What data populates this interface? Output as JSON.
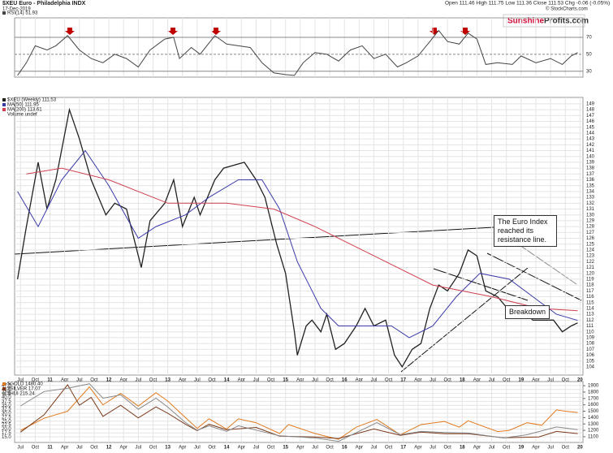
{
  "header": {
    "symbol": "$XEU Euro - Philadelphia INDX",
    "date": "17-Dec-2019",
    "quote": "Open 111.46  High 111.75  Low 111.36  Close 111.53  Chg -0.06 (-0.05%)",
    "credit": "© StockCharts.com"
  },
  "logo": {
    "brand": "Sunshine",
    "domain": "Profits.com"
  },
  "chart_data": [
    {
      "type": "line",
      "xlim": [
        2010.4,
        2020.05
      ],
      "ylim": [
        23,
        93
      ],
      "yticks": [
        30,
        50,
        70
      ],
      "grid": true,
      "series": [
        {
          "name": "RSI(14) 51.93",
          "color": "#444444",
          "x": [
            2010.45,
            2010.6,
            2010.75,
            2010.95,
            2011.1,
            2011.3,
            2011.5,
            2011.7,
            2011.9,
            2012.1,
            2012.3,
            2012.5,
            2012.7,
            2012.95,
            2013.1,
            2013.2,
            2013.4,
            2013.55,
            2013.8,
            2014.0,
            2014.2,
            2014.4,
            2014.6,
            2014.8,
            2015.0,
            2015.15,
            2015.3,
            2015.5,
            2015.7,
            2015.9,
            2016.1,
            2016.3,
            2016.5,
            2016.7,
            2016.9,
            2017.05,
            2017.25,
            2017.45,
            2017.6,
            2017.75,
            2017.95,
            2018.1,
            2018.25,
            2018.4,
            2018.6,
            2018.85,
            2019.0,
            2019.25,
            2019.5,
            2019.7,
            2019.85,
            2019.96
          ],
          "values": [
            25,
            40,
            60,
            55,
            60,
            72,
            55,
            45,
            40,
            50,
            45,
            35,
            55,
            68,
            70,
            45,
            58,
            50,
            72,
            62,
            60,
            58,
            40,
            28,
            26,
            25,
            40,
            52,
            50,
            42,
            55,
            60,
            45,
            50,
            35,
            40,
            48,
            65,
            78,
            65,
            62,
            75,
            68,
            38,
            40,
            38,
            48,
            40,
            45,
            38,
            48,
            51.93
          ]
        }
      ]
    },
    {
      "type": "line",
      "xlim": [
        2010.4,
        2020.05
      ],
      "ylim": [
        102.6,
        150.1
      ],
      "yticks": [
        104,
        105,
        106,
        107,
        108,
        109,
        110,
        111,
        112,
        113,
        114,
        115,
        116,
        117,
        118,
        119,
        120,
        121,
        122,
        123,
        124,
        125,
        126,
        127,
        128,
        129,
        130,
        131,
        132,
        133,
        134,
        135,
        136,
        137,
        138,
        139,
        140,
        141,
        142,
        143,
        144,
        145,
        146,
        147,
        148,
        149
      ],
      "grid": true,
      "xticks": [
        {
          "value": 2010.5,
          "label": "Jul"
        },
        {
          "value": 2010.75,
          "label": "Oct"
        },
        {
          "value": 2011,
          "label": "11"
        },
        {
          "value": 2011.25,
          "label": "Apr"
        },
        {
          "value": 2011.5,
          "label": "Jul"
        },
        {
          "value": 2011.75,
          "label": "Oct"
        },
        {
          "value": 2012,
          "label": "12"
        },
        {
          "value": 2012.25,
          "label": "Apr"
        },
        {
          "value": 2012.5,
          "label": "Jul"
        },
        {
          "value": 2012.75,
          "label": "Oct"
        },
        {
          "value": 2013,
          "label": "13"
        },
        {
          "value": 2013.25,
          "label": "Apr"
        },
        {
          "value": 2013.5,
          "label": "Jul"
        },
        {
          "value": 2013.75,
          "label": "Oct"
        },
        {
          "value": 2014,
          "label": "14"
        },
        {
          "value": 2014.25,
          "label": "Apr"
        },
        {
          "value": 2014.5,
          "label": "Jul"
        },
        {
          "value": 2014.75,
          "label": "Oct"
        },
        {
          "value": 2015,
          "label": "15"
        },
        {
          "value": 2015.25,
          "label": "Apr"
        },
        {
          "value": 2015.5,
          "label": "Jul"
        },
        {
          "value": 2015.75,
          "label": "Oct"
        },
        {
          "value": 2016,
          "label": "16"
        },
        {
          "value": 2016.25,
          "label": "Apr"
        },
        {
          "value": 2016.5,
          "label": "Jul"
        },
        {
          "value": 2016.75,
          "label": "Oct"
        },
        {
          "value": 2017,
          "label": "17"
        },
        {
          "value": 2017.25,
          "label": "Apr"
        },
        {
          "value": 2017.5,
          "label": "Jul"
        },
        {
          "value": 2017.75,
          "label": "Oct"
        },
        {
          "value": 2018,
          "label": "18"
        },
        {
          "value": 2018.25,
          "label": "Apr"
        },
        {
          "value": 2018.5,
          "label": "Jul"
        },
        {
          "value": 2018.75,
          "label": "Oct"
        },
        {
          "value": 2019,
          "label": "19"
        },
        {
          "value": 2019.25,
          "label": "Apr"
        },
        {
          "value": 2019.5,
          "label": "Jul"
        },
        {
          "value": 2019.75,
          "label": "Oct"
        },
        {
          "value": 2020,
          "label": "20"
        }
      ],
      "series": [
        {
          "name": "$XEU (Weekly) 111.53",
          "color": "#222222",
          "x": [
            2010.45,
            2010.6,
            2010.8,
            2010.95,
            2011.1,
            2011.33,
            2011.5,
            2011.7,
            2011.95,
            2012.1,
            2012.3,
            2012.55,
            2012.7,
            2012.95,
            2013.1,
            2013.25,
            2013.45,
            2013.55,
            2013.8,
            2013.95,
            2014.3,
            2014.5,
            2014.65,
            2014.85,
            2015.0,
            2015.15,
            2015.2,
            2015.35,
            2015.45,
            2015.6,
            2015.7,
            2015.85,
            2016.0,
            2016.2,
            2016.35,
            2016.5,
            2016.7,
            2016.85,
            2016.98,
            2017.15,
            2017.3,
            2017.45,
            2017.6,
            2017.75,
            2017.95,
            2018.1,
            2018.25,
            2018.4,
            2018.6,
            2018.85,
            2019.0,
            2019.2,
            2019.4,
            2019.55,
            2019.7,
            2019.85,
            2019.96
          ],
          "values": [
            119,
            128,
            139,
            131,
            136,
            148,
            143,
            136,
            130,
            132,
            131,
            121,
            129,
            132,
            136,
            128,
            133,
            130,
            136,
            138,
            139,
            136,
            133,
            125,
            120,
            110,
            106,
            111,
            112,
            110,
            113,
            107,
            108,
            111,
            114,
            111,
            112,
            106,
            104,
            107,
            108,
            114,
            118,
            117,
            120,
            124,
            123,
            117,
            116,
            113,
            114,
            112,
            112,
            112,
            110,
            111,
            111.53
          ]
        },
        {
          "name": "MA(50) 111.95",
          "color": "#3a3aa8",
          "x": [
            2010.45,
            2010.8,
            2011.2,
            2011.6,
            2012.0,
            2012.5,
            2012.8,
            2013.3,
            2013.7,
            2014.2,
            2014.6,
            2014.9,
            2015.2,
            2015.6,
            2015.9,
            2016.3,
            2016.8,
            2017.1,
            2017.5,
            2017.9,
            2018.3,
            2018.8,
            2019.2,
            2019.6,
            2019.96
          ],
          "values": [
            134,
            128,
            136,
            141,
            135,
            126,
            128,
            130,
            133,
            136,
            136,
            131,
            122,
            114,
            111,
            111,
            111,
            109,
            111,
            116,
            120,
            119,
            116,
            113,
            111.95
          ]
        },
        {
          "name": "MA(200) 113.61",
          "color": "#d04050",
          "x": [
            2010.6,
            2011.2,
            2012.0,
            2013.0,
            2014.0,
            2014.8,
            2015.5,
            2016.5,
            2017.5,
            2018.5,
            2019.3,
            2019.96
          ],
          "values": [
            137,
            138,
            136,
            132,
            132,
            131,
            128,
            123,
            118,
            116,
            114,
            113.61
          ]
        }
      ],
      "extra_legend": "Volume undef",
      "annotations": {
        "resistance": "The Euro Index reached its resistance line.",
        "breakdown": "Breakdown"
      }
    },
    {
      "type": "line",
      "xlim": [
        2010.4,
        2020.05
      ],
      "ylim": [
        11.5,
        50
      ],
      "y2lim": [
        1010,
        1965
      ],
      "yticks": [
        {
          "value": 47.5,
          "label": "47.5"
        },
        {
          "value": 45,
          "label": "45.0"
        },
        {
          "value": 42.5,
          "label": "42.5"
        },
        {
          "value": 40,
          "label": "40.0"
        },
        {
          "value": 37.5,
          "label": "37.5"
        },
        {
          "value": 35,
          "label": "35.0"
        },
        {
          "value": 32.5,
          "label": "32.5"
        },
        {
          "value": 30,
          "label": "30.0"
        },
        {
          "value": 27.5,
          "label": "27.5"
        },
        {
          "value": 25,
          "label": "25.0"
        },
        {
          "value": 22.5,
          "label": "22.5"
        },
        {
          "value": 20,
          "label": "20.0"
        },
        {
          "value": 17.5,
          "label": "17.5"
        },
        {
          "value": 15,
          "label": "15.0"
        }
      ],
      "y2ticks": [
        1900,
        1800,
        1700,
        1600,
        1500,
        1400,
        1300,
        1200,
        1100
      ],
      "series": [
        {
          "name": "$GOLD 1480.40",
          "color": "#e07a20",
          "axis": "y2",
          "x": [
            2010.5,
            2010.9,
            2011.3,
            2011.67,
            2011.9,
            2012.2,
            2012.5,
            2012.8,
            2013.0,
            2013.3,
            2013.5,
            2013.7,
            2014.0,
            2014.2,
            2014.5,
            2014.9,
            2015.05,
            2015.5,
            2015.9,
            2016.2,
            2016.55,
            2016.95,
            2017.3,
            2017.7,
            2017.95,
            2018.1,
            2018.6,
            2018.8,
            2019.1,
            2019.35,
            2019.6,
            2019.75,
            2019.96
          ],
          "values": [
            1200,
            1390,
            1500,
            1880,
            1600,
            1780,
            1580,
            1790,
            1660,
            1400,
            1230,
            1380,
            1220,
            1380,
            1320,
            1150,
            1290,
            1150,
            1060,
            1250,
            1370,
            1130,
            1290,
            1340,
            1250,
            1350,
            1180,
            1200,
            1320,
            1280,
            1520,
            1500,
            1480.4
          ]
        },
        {
          "name": "$SILVER 17.07",
          "color": "#7a3a1a",
          "x": [
            2010.5,
            2010.9,
            2011.3,
            2011.5,
            2011.7,
            2011.9,
            2012.2,
            2012.5,
            2012.8,
            2013.0,
            2013.3,
            2013.5,
            2013.7,
            2014.0,
            2014.5,
            2014.9,
            2015.5,
            2015.9,
            2016.5,
            2016.95,
            2017.3,
            2017.7,
            2018.1,
            2018.7,
            2019.3,
            2019.6,
            2019.96
          ],
          "values": [
            18,
            29,
            48,
            35,
            40,
            28,
            35,
            27,
            34,
            30,
            23,
            19,
            23,
            19.5,
            21,
            15.5,
            15,
            14,
            20,
            16,
            18,
            17,
            17,
            14.5,
            15,
            18.5,
            17.07
          ]
        },
        {
          "name": "$HUI 215.24",
          "color": "#888888",
          "axis": "y3",
          "ylim": [
            100,
            650
          ],
          "x": [
            2010.5,
            2010.9,
            2011.3,
            2011.67,
            2011.9,
            2012.2,
            2012.5,
            2012.8,
            2013.0,
            2013.3,
            2013.5,
            2013.7,
            2014.0,
            2014.2,
            2014.9,
            2015.5,
            2015.9,
            2016.55,
            2016.95,
            2017.3,
            2017.7,
            2018.1,
            2018.7,
            2019.1,
            2019.6,
            2019.96
          ],
          "values": [
            430,
            560,
            590,
            630,
            500,
            530,
            400,
            500,
            420,
            280,
            210,
            250,
            200,
            250,
            160,
            140,
            110,
            280,
            170,
            200,
            190,
            185,
            140,
            170,
            240,
            215.24
          ]
        }
      ]
    }
  ]
}
